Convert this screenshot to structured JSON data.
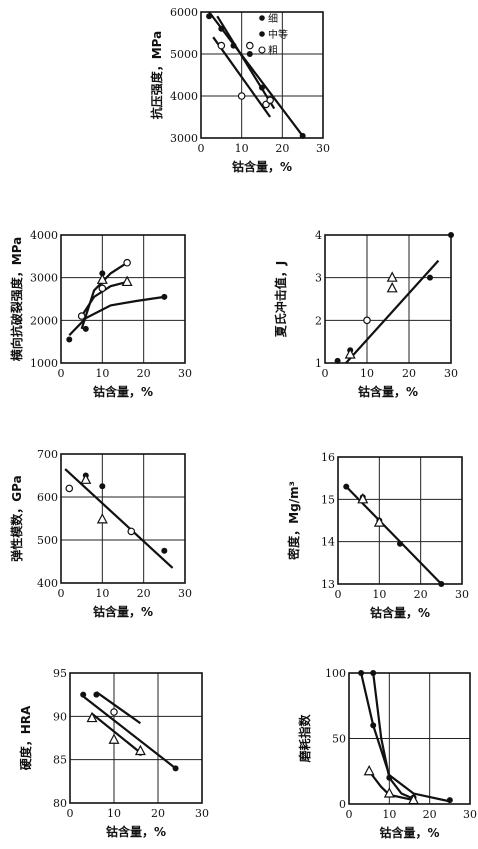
{
  "chart_data": [
    {
      "type": "scatter",
      "xlabel": "钴含量，%",
      "ylabel": "抗压强度，MPa",
      "xlim": [
        0,
        30
      ],
      "ylim": [
        3000,
        6000
      ],
      "xticks": [
        "0",
        "10",
        "20",
        "30"
      ],
      "yticks": [
        "3000",
        "4000",
        "5000",
        "6000"
      ],
      "legend": [
        "细",
        "中等",
        "粗"
      ],
      "series": [
        {
          "marker": "filled",
          "x": [
            2,
            5,
            8,
            12,
            15,
            16,
            25
          ],
          "y": [
            5900,
            5600,
            5200,
            5000,
            4200,
            3800,
            3050
          ]
        },
        {
          "marker": "open",
          "x": [
            5,
            10,
            12,
            16,
            17
          ],
          "y": [
            5200,
            4000,
            5200,
            3800,
            3900
          ]
        }
      ],
      "lines": [
        {
          "x": [
            2,
            25
          ],
          "y": [
            6000,
            3050
          ]
        },
        {
          "x": [
            4,
            18
          ],
          "y": [
            5900,
            3700
          ]
        },
        {
          "x": [
            3,
            17
          ],
          "y": [
            5400,
            3500
          ]
        }
      ]
    },
    {
      "type": "scatter",
      "xlabel": "钴含量，%",
      "ylabel": "横向抗破裂强度，MPa",
      "xlim": [
        0,
        30
      ],
      "ylim": [
        1000,
        4000
      ],
      "xticks": [
        "0",
        "10",
        "20",
        "30"
      ],
      "yticks": [
        "1000",
        "2000",
        "3000",
        "4000"
      ],
      "series": [
        {
          "marker": "filled",
          "x": [
            2,
            6,
            10,
            25
          ],
          "y": [
            1550,
            1800,
            3100,
            2550
          ]
        },
        {
          "marker": "open",
          "x": [
            5,
            10,
            16
          ],
          "y": [
            2100,
            2750,
            3350
          ]
        },
        {
          "marker": "triangle",
          "x": [
            10,
            16
          ],
          "y": [
            2950,
            2900
          ]
        }
      ],
      "lines": [
        {
          "x": [
            2,
            6,
            12,
            18,
            25
          ],
          "y": [
            1650,
            2050,
            2350,
            2450,
            2550
          ]
        },
        {
          "x": [
            5,
            8,
            12,
            16
          ],
          "y": [
            1800,
            2700,
            3100,
            3350
          ]
        },
        {
          "x": [
            5,
            8,
            12,
            16
          ],
          "y": [
            2100,
            2550,
            2800,
            2900
          ]
        }
      ]
    },
    {
      "type": "scatter",
      "xlabel": "钴含量，%",
      "ylabel": "夏氏冲击值，J",
      "xlim": [
        0,
        30
      ],
      "ylim": [
        1,
        4
      ],
      "xticks": [
        "0",
        "10",
        "20",
        "30"
      ],
      "yticks": [
        "1",
        "2",
        "3",
        "4"
      ],
      "series": [
        {
          "marker": "filled",
          "x": [
            3,
            6,
            25,
            30
          ],
          "y": [
            1.05,
            1.3,
            3.0,
            4.0
          ]
        },
        {
          "marker": "open",
          "x": [
            10
          ],
          "y": [
            2.0
          ]
        },
        {
          "marker": "triangle",
          "x": [
            6,
            16,
            16
          ],
          "y": [
            1.2,
            2.75,
            3.0
          ]
        }
      ],
      "lines": [
        {
          "x": [
            5,
            27
          ],
          "y": [
            1.0,
            3.4
          ]
        }
      ]
    },
    {
      "type": "scatter",
      "xlabel": "钴含量，%",
      "ylabel": "弹性模数，GPa",
      "xlim": [
        0,
        30
      ],
      "ylim": [
        400,
        700
      ],
      "xticks": [
        "0",
        "10",
        "20",
        "30"
      ],
      "yticks": [
        "400",
        "500",
        "600",
        "700"
      ],
      "series": [
        {
          "marker": "filled",
          "x": [
            6,
            10,
            25
          ],
          "y": [
            650,
            625,
            475
          ]
        },
        {
          "marker": "open",
          "x": [
            2,
            17
          ],
          "y": [
            620,
            520
          ]
        },
        {
          "marker": "triangle",
          "x": [
            6,
            10
          ],
          "y": [
            640,
            548
          ]
        }
      ],
      "lines": [
        {
          "x": [
            1,
            27
          ],
          "y": [
            665,
            435
          ]
        }
      ]
    },
    {
      "type": "scatter",
      "xlabel": "钴含量，%",
      "ylabel": "密度，Mg/m³",
      "xlim": [
        0,
        30
      ],
      "ylim": [
        13,
        16
      ],
      "xticks": [
        "0",
        "10",
        "20",
        "30"
      ],
      "yticks": [
        "13",
        "14",
        "15",
        "16"
      ],
      "series": [
        {
          "marker": "filled",
          "x": [
            2,
            6,
            10,
            15,
            25
          ],
          "y": [
            15.3,
            15.05,
            14.5,
            13.95,
            13.0
          ]
        },
        {
          "marker": "triangle",
          "x": [
            6,
            10
          ],
          "y": [
            15.0,
            14.45
          ]
        }
      ],
      "lines": [
        {
          "x": [
            2,
            25
          ],
          "y": [
            15.3,
            13.0
          ]
        }
      ]
    },
    {
      "type": "scatter",
      "xlabel": "钴含量，%",
      "ylabel": "硬度，HRA",
      "xlim": [
        0,
        30
      ],
      "ylim": [
        80,
        95
      ],
      "xticks": [
        "0",
        "10",
        "20",
        "30"
      ],
      "yticks": [
        "80",
        "85",
        "90",
        "95"
      ],
      "series": [
        {
          "marker": "filled",
          "x": [
            3,
            6,
            16,
            24
          ],
          "y": [
            92.5,
            92.5,
            85.8,
            84.0
          ]
        },
        {
          "marker": "open",
          "x": [
            10
          ],
          "y": [
            90.5
          ]
        },
        {
          "marker": "triangle",
          "x": [
            5,
            10,
            16
          ],
          "y": [
            89.8,
            87.3,
            86.0
          ]
        }
      ],
      "lines": [
        {
          "x": [
            3,
            24
          ],
          "y": [
            92.3,
            84.0
          ]
        },
        {
          "x": [
            6,
            16
          ],
          "y": [
            92.8,
            89.2
          ]
        },
        {
          "x": [
            5,
            16
          ],
          "y": [
            90.3,
            85.8
          ]
        }
      ]
    },
    {
      "type": "scatter",
      "xlabel": "钴含量，%",
      "ylabel": "磨耗指数",
      "xlim": [
        0,
        30
      ],
      "ylim": [
        0,
        100
      ],
      "xticks": [
        "0",
        "10",
        "20",
        "30"
      ],
      "yticks": [
        "0",
        "50",
        "100"
      ],
      "series": [
        {
          "marker": "filled",
          "x": [
            3,
            6,
            6,
            10,
            16,
            25
          ],
          "y": [
            100,
            100,
            60,
            20,
            5,
            3
          ]
        },
        {
          "marker": "triangle",
          "x": [
            5,
            10,
            16
          ],
          "y": [
            25,
            8,
            3
          ]
        }
      ],
      "lines": [
        {
          "x": [
            3,
            6,
            10,
            16,
            25
          ],
          "y": [
            100,
            60,
            22,
            8,
            2
          ]
        },
        {
          "x": [
            6,
            8,
            10,
            13,
            16
          ],
          "y": [
            100,
            50,
            20,
            8,
            4
          ]
        },
        {
          "x": [
            5,
            8,
            10,
            13,
            16
          ],
          "y": [
            25,
            13,
            7,
            5,
            3
          ]
        }
      ]
    }
  ]
}
